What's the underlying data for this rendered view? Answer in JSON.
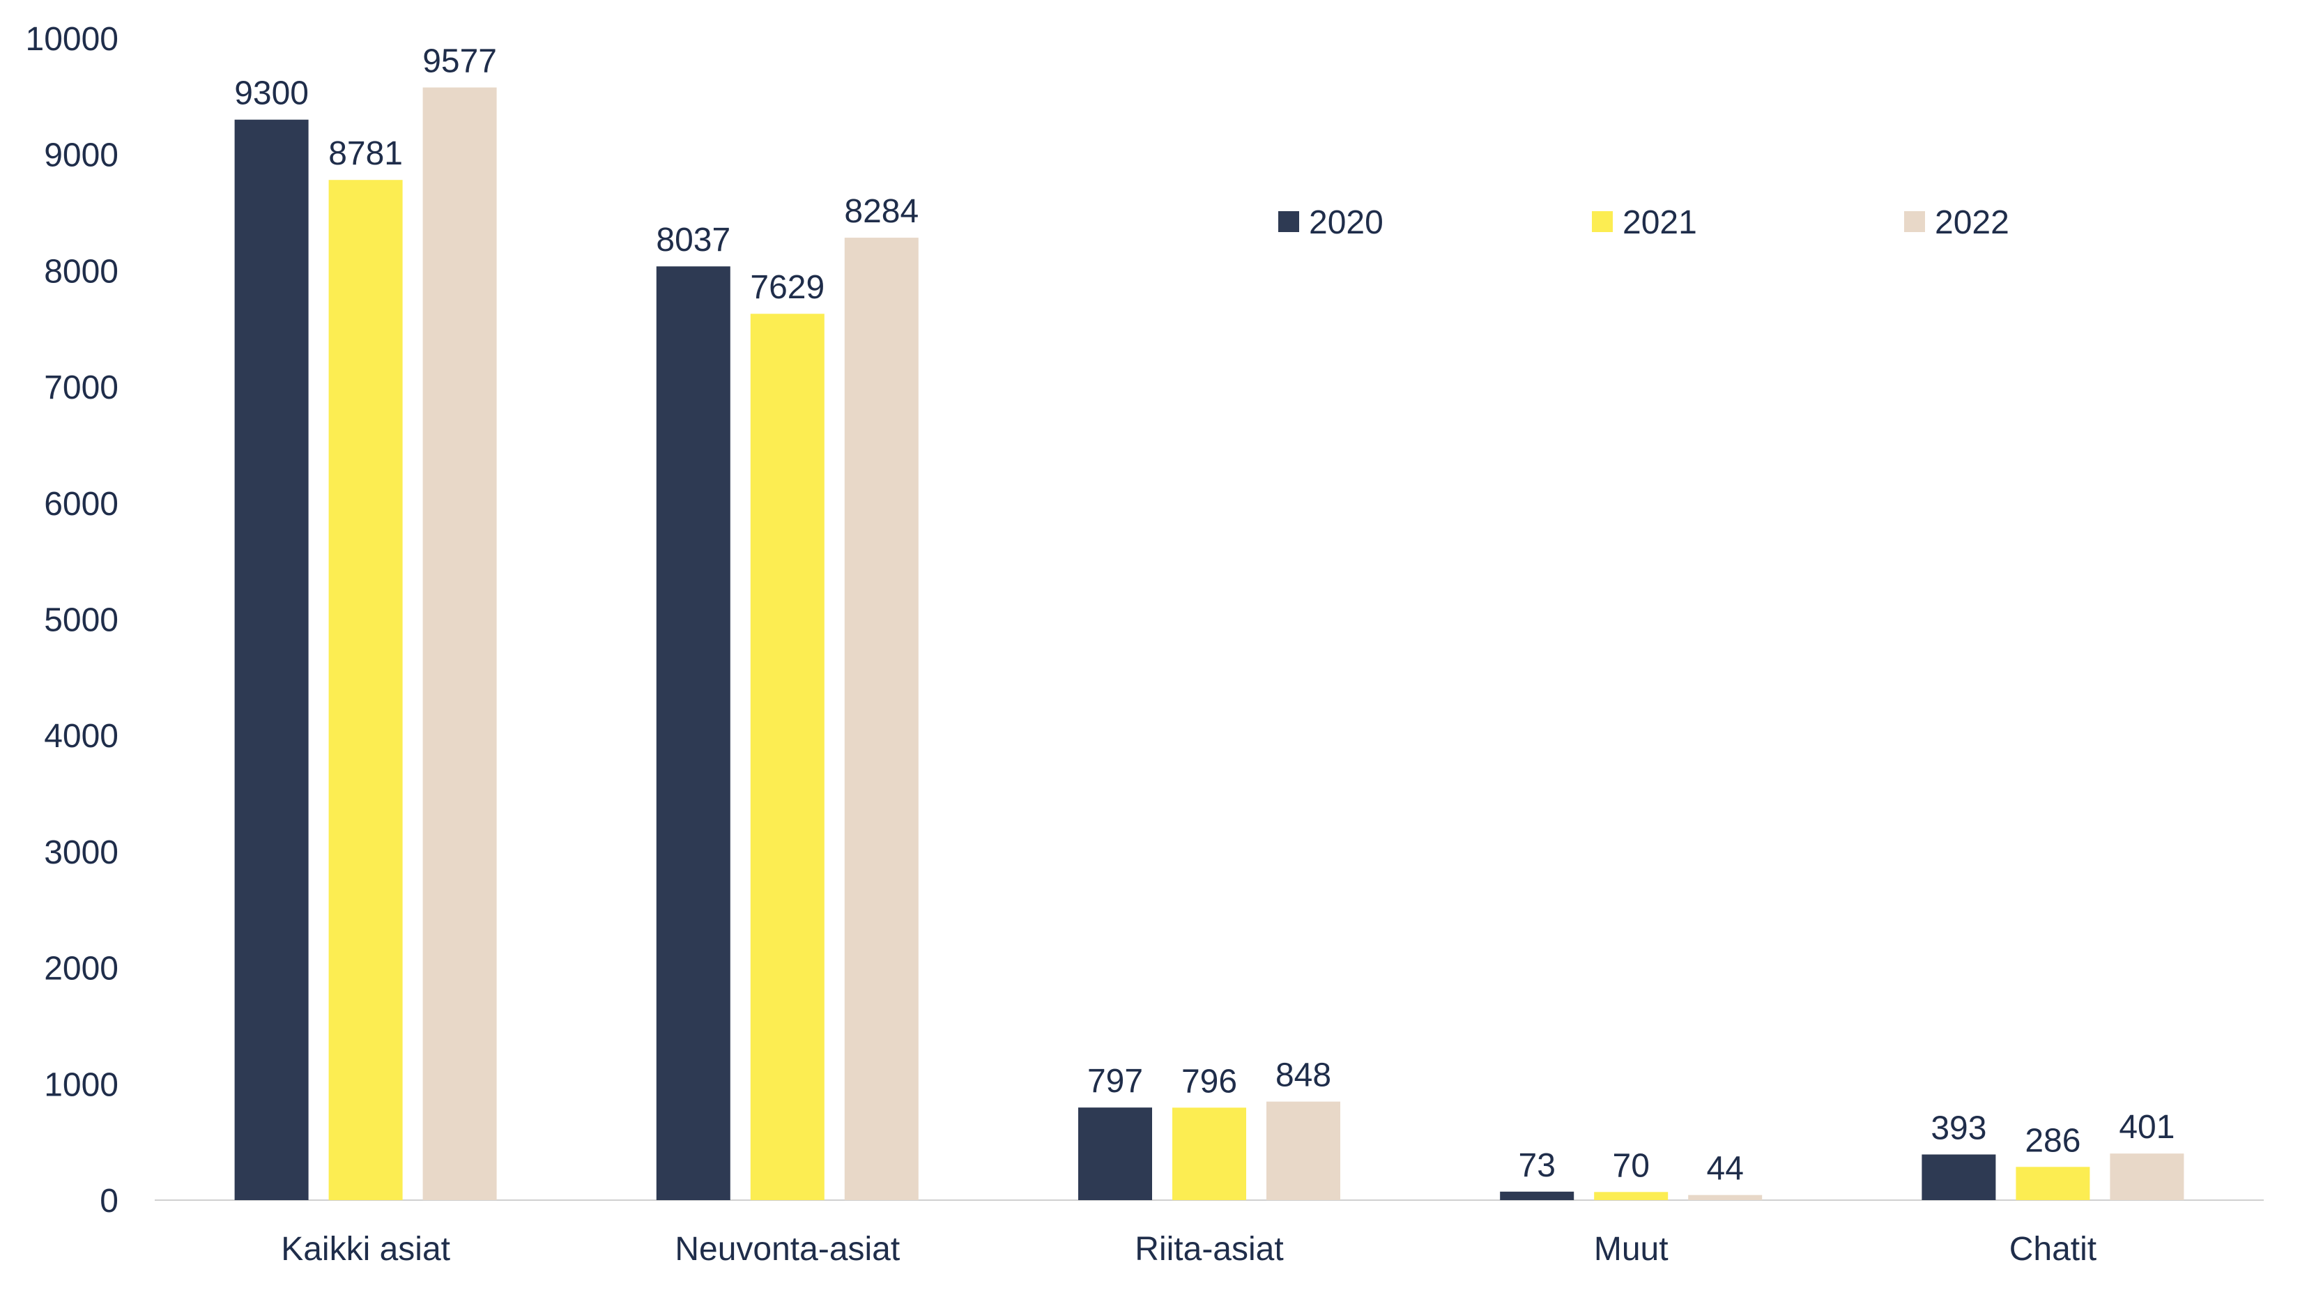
{
  "chart_data": {
    "type": "bar",
    "title": "",
    "xlabel": "",
    "ylabel": "",
    "categories": [
      "Kaikki asiat",
      "Neuvonta-asiat",
      "Riita-asiat",
      "Muut",
      "Chatit"
    ],
    "series": [
      {
        "name": "2020",
        "color": "#2e3a53",
        "values": [
          9300,
          8037,
          797,
          73,
          393
        ]
      },
      {
        "name": "2021",
        "color": "#fced52",
        "values": [
          8781,
          7629,
          796,
          70,
          286
        ]
      },
      {
        "name": "2022",
        "color": "#e8d8c8",
        "values": [
          9577,
          8284,
          848,
          44,
          401
        ]
      }
    ],
    "ylim": [
      0,
      10000
    ],
    "yticks": [
      "0",
      "1000",
      "2000",
      "3000",
      "4000",
      "5000",
      "6000",
      "7000",
      "8000",
      "9000",
      "10000"
    ],
    "grid": false,
    "legend_position": "top-right",
    "data_labels": true
  }
}
